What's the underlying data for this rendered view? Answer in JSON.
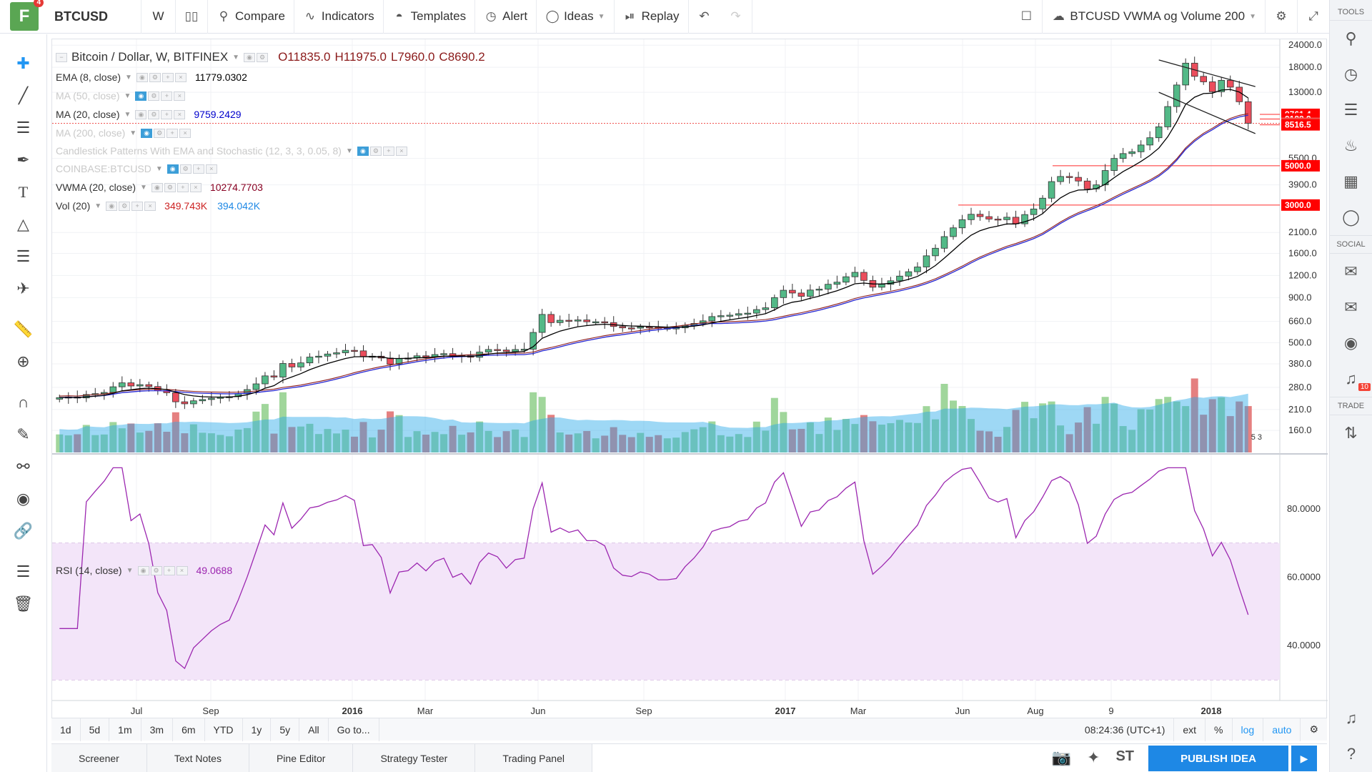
{
  "topbar": {
    "logo_text": "F",
    "logo_badge": "4",
    "symbol": "BTCUSD",
    "interval": "W",
    "compare": "Compare",
    "indicators": "Indicators",
    "templates": "Templates",
    "alert": "Alert",
    "ideas": "Ideas",
    "replay": "Replay",
    "layout_name": "BTCUSD VWMA og Volume 200"
  },
  "legend": {
    "title": "Bitcoin / Dollar, W, BITFINEX",
    "open": "O11835.0",
    "high": "H11975.0",
    "low": "L7960.0",
    "close": "C8690.2",
    "studies": [
      {
        "name": "EMA (8, close)",
        "value": "11779.0302",
        "value_color": "#000000",
        "dim": false
      },
      {
        "name": "MA (50, close)",
        "value": "",
        "value_color": "#000000",
        "dim": true
      },
      {
        "name": "MA (20, close)",
        "value": "9759.2429",
        "value_color": "#0000cc",
        "dim": false
      },
      {
        "name": "MA (200, close)",
        "value": "",
        "value_color": "#000000",
        "dim": true
      },
      {
        "name": "Candlestick Patterns With EMA and Stochastic (12, 3, 3, 0.05, 8)",
        "value": "",
        "value_color": "#000000",
        "dim": true
      },
      {
        "name": "COINBASE:BTCUSD",
        "value": "",
        "value_color": "#000000",
        "dim": true
      },
      {
        "name": "VWMA (20, close)",
        "value": "10274.7703",
        "value_color": "#880022",
        "dim": false
      },
      {
        "name": "Vol (20)",
        "value": "349.743K",
        "value_color": "#cc2222",
        "value2": "394.042K",
        "value2_color": "#1e88e5",
        "dim": false
      }
    ],
    "rsi_name": "RSI (14, close)",
    "rsi_value": "49.0688"
  },
  "price_axis": {
    "ticks": [
      "24000.0",
      "18000.0",
      "13000.0",
      "5500.0",
      "3900.0",
      "2100.0",
      "1600.0",
      "1200.0",
      "900.0",
      "660.0",
      "500.0",
      "380.0",
      "280.0",
      "210.0",
      "160.0"
    ],
    "labels": [
      {
        "text": "9761.4",
        "color": "#ff0000"
      },
      {
        "text": "9188.9",
        "color": "#ff0000"
      },
      {
        "text": "8690.2",
        "color": "#ef5350"
      },
      {
        "text": "8516.5",
        "color": "#ff0000"
      },
      {
        "text": "5000.0",
        "color": "#ff0000"
      },
      {
        "text": "3000.0",
        "color": "#ff0000"
      }
    ]
  },
  "rsi_axis": {
    "ticks": [
      "80.0000",
      "60.0000",
      "40.0000"
    ]
  },
  "time_axis": {
    "labels": [
      "Jul",
      "Sep",
      "2016",
      "Mar",
      "Jun",
      "Sep",
      "2017",
      "Mar",
      "Jun",
      "Aug",
      "9",
      "2018"
    ]
  },
  "volume_marker": "5 3",
  "timebar": {
    "ranges": [
      "1d",
      "5d",
      "1m",
      "3m",
      "6m",
      "YTD",
      "1y",
      "5y",
      "All",
      "Go to..."
    ],
    "clock": "08:24:36 (UTC+1)",
    "ext": "ext",
    "pct": "%",
    "log": "log",
    "auto": "auto"
  },
  "bottombar": {
    "tabs": [
      "Screener",
      "Text Notes",
      "Pine Editor",
      "Strategy Tester",
      "Trading Panel"
    ],
    "publish": "PUBLISH IDEA",
    "st_label": "ST"
  },
  "rightdock": {
    "tools": "TOOLS",
    "social": "SOCIAL",
    "trade": "TRADE",
    "badge": "10"
  },
  "colors": {
    "up": "#53b987",
    "down": "#eb4d5c",
    "ema8": "#000000",
    "ma20": "#2525d0",
    "vwma": "#8b1a1a",
    "rsi": "#9c27b0",
    "rsi_band": "#f3e5f9"
  },
  "chart_data": {
    "type": "candlestick",
    "scale": "log",
    "series_closes_weekly": [
      245,
      247,
      244,
      255,
      258,
      262,
      282,
      297,
      285,
      290,
      283,
      268,
      261,
      232,
      226,
      235,
      239,
      243,
      246,
      248,
      258,
      272,
      293,
      325,
      320,
      382,
      365,
      385,
      415,
      420,
      432,
      439,
      453,
      450,
      418,
      420,
      410,
      378,
      408,
      410,
      422,
      415,
      429,
      434,
      418,
      423,
      414,
      443,
      458,
      455,
      446,
      458,
      460,
      572,
      723,
      650,
      670,
      663,
      673,
      657,
      657,
      650,
      618,
      607,
      605,
      615,
      612,
      605,
      605,
      607,
      627,
      643,
      665,
      703,
      711,
      716,
      730,
      735,
      770,
      788,
      900,
      990,
      955,
      915,
      993,
      1005,
      1070,
      1100,
      1180,
      1250,
      1125,
      1030,
      1070,
      1120,
      1190,
      1260,
      1340,
      1550,
      1710,
      1990,
      2230,
      2480,
      2660,
      2580,
      2500,
      2480,
      2560,
      2350,
      2650,
      2850,
      3280,
      4070,
      4350,
      4300,
      4100,
      3700,
      3900,
      4700,
      5500,
      5860,
      6000,
      6550,
      7200,
      8300,
      10800,
      14300,
      19000,
      16000,
      14900,
      13100,
      15200,
      13900,
      11500,
      8690
    ]
  }
}
